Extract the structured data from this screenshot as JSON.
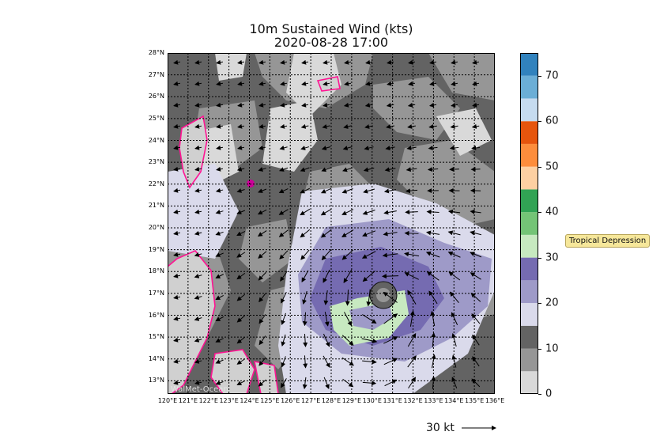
{
  "title": "10m Sustained Wind (kts)",
  "subtitle": "2020-08-28 17:00",
  "lat_labels": [
    "28°N",
    "27°N",
    "26°N",
    "25°N",
    "24°N",
    "23°N",
    "22°N",
    "21°N",
    "20°N",
    "19°N",
    "18°N",
    "17°N",
    "16°N",
    "15°N",
    "14°N",
    "13°N"
  ],
  "lon_labels": [
    "120°E",
    "121°E",
    "122°E",
    "123°E",
    "124°E",
    "125°E",
    "126°E",
    "127°E",
    "128°E",
    "129°E",
    "130°E",
    "131°E",
    "132°E",
    "133°E",
    "134°E",
    "135°E",
    "136°E"
  ],
  "colorbar": {
    "ticks": [
      "0",
      "10",
      "20",
      "30",
      "40",
      "50",
      "60",
      "70"
    ],
    "range": [
      0,
      75
    ],
    "bands": [
      "#d9d9d9",
      "#969696",
      "#636363",
      "#dadaeb",
      "#9e9ac8",
      "#756bb1",
      "#c7e9c0",
      "#74c476",
      "#31a354",
      "#fdd0a2",
      "#fd8d3c",
      "#e6550d",
      "#c6dbef",
      "#6baed6",
      "#3182bd"
    ]
  },
  "badge": "Tropical Depression",
  "wind_key": "30 kt",
  "watermark": "WalMet-Ocean",
  "map": {
    "lon_range": [
      120,
      136
    ],
    "lat_range": [
      12.4,
      28
    ],
    "coast_color": "#ff1493",
    "storm_center": {
      "lon": 130.6,
      "lat": 16.6
    }
  }
}
